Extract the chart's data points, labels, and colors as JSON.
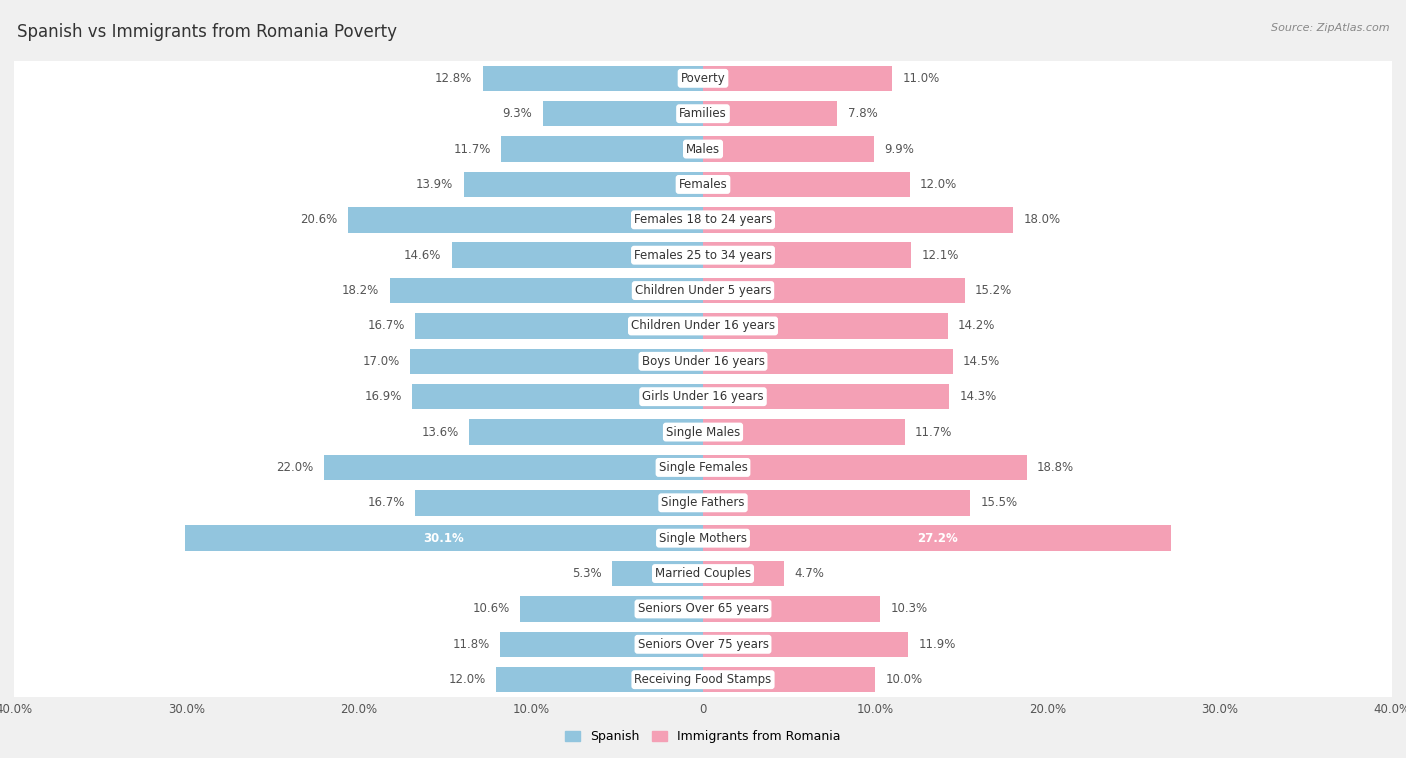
{
  "title": "Spanish vs Immigrants from Romania Poverty",
  "source": "Source: ZipAtlas.com",
  "categories": [
    "Poverty",
    "Families",
    "Males",
    "Females",
    "Females 18 to 24 years",
    "Females 25 to 34 years",
    "Children Under 5 years",
    "Children Under 16 years",
    "Boys Under 16 years",
    "Girls Under 16 years",
    "Single Males",
    "Single Females",
    "Single Fathers",
    "Single Mothers",
    "Married Couples",
    "Seniors Over 65 years",
    "Seniors Over 75 years",
    "Receiving Food Stamps"
  ],
  "spanish_values": [
    12.8,
    9.3,
    11.7,
    13.9,
    20.6,
    14.6,
    18.2,
    16.7,
    17.0,
    16.9,
    13.6,
    22.0,
    16.7,
    30.1,
    5.3,
    10.6,
    11.8,
    12.0
  ],
  "romania_values": [
    11.0,
    7.8,
    9.9,
    12.0,
    18.0,
    12.1,
    15.2,
    14.2,
    14.5,
    14.3,
    11.7,
    18.8,
    15.5,
    27.2,
    4.7,
    10.3,
    11.9,
    10.0
  ],
  "spanish_color": "#92c5de",
  "romania_color": "#f4a0b5",
  "axis_limit": 40.0,
  "background_color": "#f0f0f0",
  "bar_row_color": "#ffffff",
  "sep_color": "#d8d8d8",
  "legend_spanish": "Spanish",
  "legend_romania": "Immigrants from Romania",
  "title_fontsize": 12,
  "label_fontsize": 8.5,
  "value_fontsize": 8.5,
  "axis_fontsize": 8.5
}
